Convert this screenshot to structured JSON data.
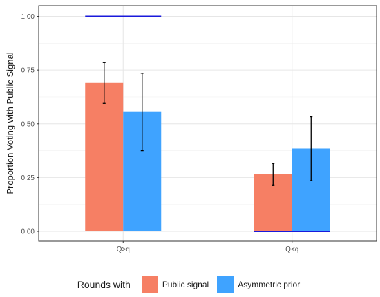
{
  "chart_data": {
    "type": "bar",
    "ylabel": "Proportion Voting with Public Signal",
    "xlabel": "",
    "categories": [
      "Q>q",
      "Q<q"
    ],
    "ylim": [
      -0.045,
      1.05
    ],
    "yticks": [
      0.0,
      0.25,
      0.5,
      0.75,
      1.0
    ],
    "ytick_labels": [
      "0.00",
      "0.25",
      "0.50",
      "0.75",
      "1.00"
    ],
    "grid": true,
    "legend_position": "bottom",
    "legend_title": "Rounds with",
    "series": [
      {
        "name": "Public signal",
        "color": "#F67F64",
        "values": [
          0.69,
          0.265
        ],
        "error_low": [
          0.595,
          0.215
        ],
        "error_high": [
          0.785,
          0.315
        ]
      },
      {
        "name": "Asymmetric prior",
        "color": "#3FA3FF",
        "values": [
          0.555,
          0.385
        ],
        "error_low": [
          0.375,
          0.235
        ],
        "error_high": [
          0.735,
          0.533
        ]
      }
    ],
    "reference_lines": [
      {
        "category": "Q>q",
        "value": 1.0,
        "color": "#1a1adb"
      },
      {
        "category": "Q<q",
        "value": 0.0,
        "color": "#1a1adb"
      }
    ]
  }
}
